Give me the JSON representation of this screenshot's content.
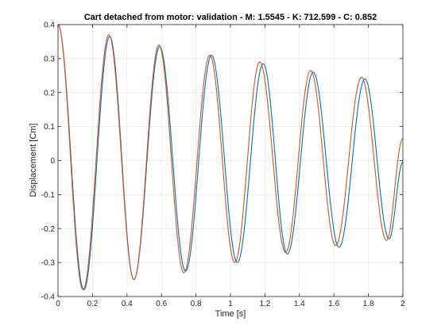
{
  "chart_data": {
    "type": "line",
    "title": "Cart detached from motor: validation - M: 1.5545 - K: 712.599 - C: 0.852",
    "xlabel": "Time [s]",
    "ylabel": "Displacement [Cm]",
    "xlim": [
      0,
      2
    ],
    "ylim": [
      -0.4,
      0.4
    ],
    "xticks": [
      0,
      0.2,
      0.4,
      0.6,
      0.8,
      1,
      1.2,
      1.4,
      1.6,
      1.8,
      2
    ],
    "xtick_labels": [
      "0",
      "0.2",
      "0.4",
      "0.6",
      "0.8",
      "1",
      "1.2",
      "1.4",
      "1.6",
      "1.8",
      "2"
    ],
    "yticks": [
      -0.4,
      -0.3,
      -0.2,
      -0.1,
      0,
      0.1,
      0.2,
      0.3,
      0.4
    ],
    "ytick_labels": [
      "-0.4",
      "-0.3",
      "-0.2",
      "-0.1",
      "0",
      "0.1",
      "0.2",
      "0.3",
      "0.4"
    ],
    "grid": true,
    "legend": false,
    "series": [
      {
        "color": "#0072BD",
        "x": [
          0,
          0.15,
          0.3,
          0.44,
          0.59,
          0.74,
          0.89,
          1.04,
          1.19,
          1.33,
          1.48,
          1.63,
          1.78,
          1.92,
          2.0
        ],
        "values": [
          0.4,
          -0.38,
          0.365,
          -0.35,
          0.335,
          -0.325,
          0.31,
          -0.3,
          0.285,
          -0.275,
          0.26,
          -0.255,
          0.24,
          -0.23,
          -0.005
        ]
      },
      {
        "color": "#D95319",
        "x": [
          0,
          0.145,
          0.295,
          0.44,
          0.585,
          0.73,
          0.88,
          1.025,
          1.17,
          1.32,
          1.465,
          1.61,
          1.76,
          1.905,
          2.0
        ],
        "values": [
          0.4,
          -0.38,
          0.37,
          -0.35,
          0.34,
          -0.33,
          0.31,
          -0.3,
          0.29,
          -0.27,
          0.265,
          -0.25,
          0.245,
          -0.235,
          0.065
        ]
      }
    ]
  }
}
